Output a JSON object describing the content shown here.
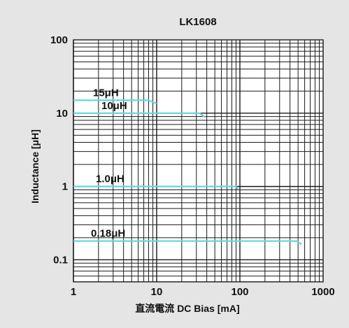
{
  "chart_data": {
    "type": "line",
    "title": "LK1608",
    "xlabel": "直流電流 DC Bias [mA]",
    "ylabel": "Inductance [μH]",
    "xscale": "log",
    "yscale": "log",
    "xlim": [
      1,
      1000
    ],
    "ylim": [
      0.05,
      100
    ],
    "x_ticks": [
      1,
      10,
      100,
      1000
    ],
    "x_tick_labels": [
      "1",
      "10",
      "100",
      "1000"
    ],
    "y_ticks": [
      0.1,
      1,
      10,
      100
    ],
    "y_tick_labels": [
      "0.1",
      "1",
      "10",
      "100"
    ],
    "grid": true,
    "legend": "inline labels",
    "series": [
      {
        "name": "15μH",
        "x": [
          1,
          8,
          10
        ],
        "y": [
          15,
          15,
          13.5
        ]
      },
      {
        "name": "10μH",
        "x": [
          1,
          33,
          38
        ],
        "y": [
          10,
          10,
          8.8
        ]
      },
      {
        "name": "1.0μH",
        "x": [
          1,
          90,
          95
        ],
        "y": [
          1,
          1,
          0.92
        ]
      },
      {
        "name": "0.18μH",
        "x": [
          1,
          480,
          550
        ],
        "y": [
          0.18,
          0.18,
          0.163
        ]
      }
    ]
  },
  "colors": {
    "background": "#e5e5e5",
    "plot_background": "#ffffff",
    "grid": "#1a1a1a",
    "series": "#5ed8dc"
  }
}
